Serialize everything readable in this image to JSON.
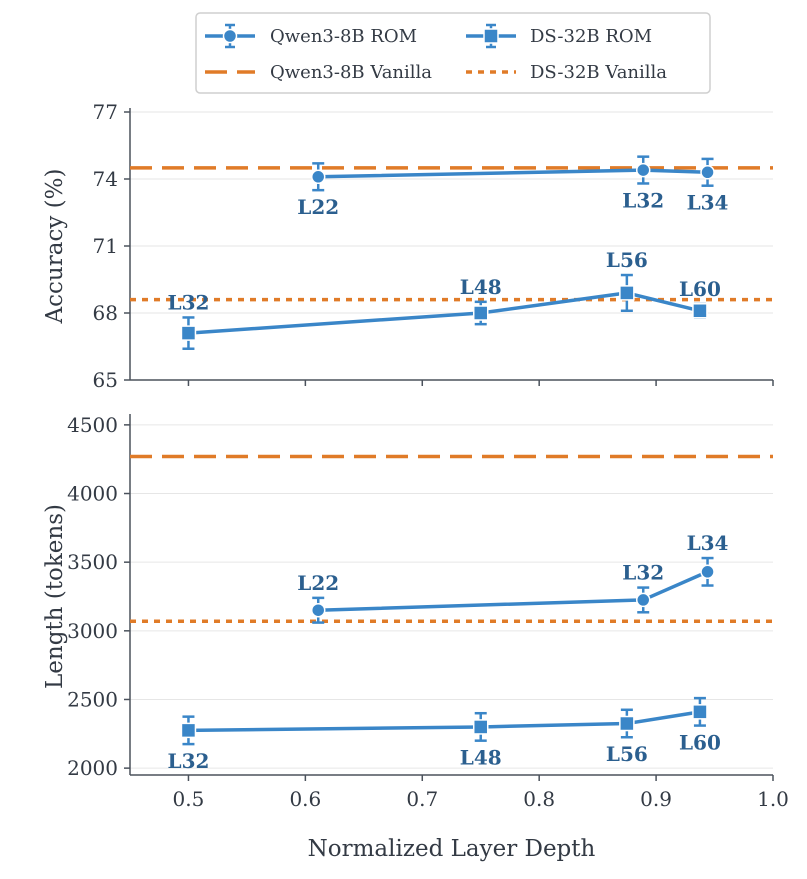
{
  "chart_data": {
    "type": "line",
    "colors": {
      "rom": "#3a86c8",
      "vanilla": "#e07b28",
      "label": "#2b5f8f",
      "axis": "#4b525c",
      "grid": "#e6e6e6"
    },
    "legend": {
      "placement": "top-center",
      "entries": [
        {
          "name": "Qwen3-8B ROM",
          "style": "line-circle"
        },
        {
          "name": "DS-32B ROM",
          "style": "line-square"
        },
        {
          "name": "Qwen3-8B Vanilla",
          "style": "dashed"
        },
        {
          "name": "DS-32B Vanilla",
          "style": "dotted"
        }
      ]
    },
    "xlabel": "Normalized Layer Depth",
    "xlim": [
      0.45,
      1.0
    ],
    "xticks": [
      0.5,
      0.6,
      0.7,
      0.8,
      0.9,
      1.0
    ],
    "xtick_labels": [
      "0.5",
      "0.6",
      "0.7",
      "0.8",
      "0.9",
      "1.0"
    ],
    "panels": [
      {
        "id": "accuracy",
        "ylabel": "Accuracy (%)",
        "ylim": [
          65,
          77
        ],
        "yticks": [
          65,
          68,
          71,
          74,
          77
        ],
        "grid": true,
        "series": [
          {
            "name": "Qwen3-8B ROM",
            "marker": "circle",
            "x": [
              0.611,
              0.889,
              0.944
            ],
            "y": [
              74.1,
              74.4,
              74.3
            ],
            "err": [
              0.6,
              0.6,
              0.6
            ],
            "labels": [
              "L22",
              "L32",
              "L34"
            ],
            "label_pos": [
              "below",
              "below",
              "below"
            ]
          },
          {
            "name": "DS-32B ROM",
            "marker": "square",
            "x": [
              0.5,
              0.75,
              0.875,
              0.9375
            ],
            "y": [
              67.1,
              68.0,
              68.9,
              68.1
            ],
            "err": [
              0.7,
              0.5,
              0.8,
              0.3
            ],
            "labels": [
              "L32",
              "L48",
              "L56",
              "L60"
            ],
            "label_pos": [
              "above",
              "above",
              "above",
              "above"
            ]
          }
        ],
        "hlines": [
          {
            "name": "Qwen3-8B Vanilla",
            "y": 74.5,
            "style": "dashed"
          },
          {
            "name": "DS-32B Vanilla",
            "y": 68.6,
            "style": "dotted"
          }
        ]
      },
      {
        "id": "length",
        "ylabel": "Length (tokens)",
        "ylim": [
          1950,
          4550
        ],
        "yticks": [
          2000,
          2500,
          3000,
          3500,
          4000,
          4500
        ],
        "grid": true,
        "series": [
          {
            "name": "Qwen3-8B ROM",
            "marker": "circle",
            "x": [
              0.611,
              0.889,
              0.944
            ],
            "y": [
              3150,
              3225,
              3430
            ],
            "err": [
              90,
              90,
              100
            ],
            "labels": [
              "L22",
              "L32",
              "L34"
            ],
            "label_pos": [
              "above",
              "above",
              "above"
            ]
          },
          {
            "name": "DS-32B ROM",
            "marker": "square",
            "x": [
              0.5,
              0.75,
              0.875,
              0.9375
            ],
            "y": [
              2275,
              2300,
              2325,
              2410
            ],
            "err": [
              100,
              100,
              100,
              100
            ],
            "labels": [
              "L32",
              "L48",
              "L56",
              "L60"
            ],
            "label_pos": [
              "below",
              "below",
              "below",
              "below"
            ]
          }
        ],
        "hlines": [
          {
            "name": "Qwen3-8B Vanilla",
            "y": 4270,
            "style": "dashed"
          },
          {
            "name": "DS-32B Vanilla",
            "y": 3070,
            "style": "dotted"
          }
        ]
      }
    ]
  }
}
